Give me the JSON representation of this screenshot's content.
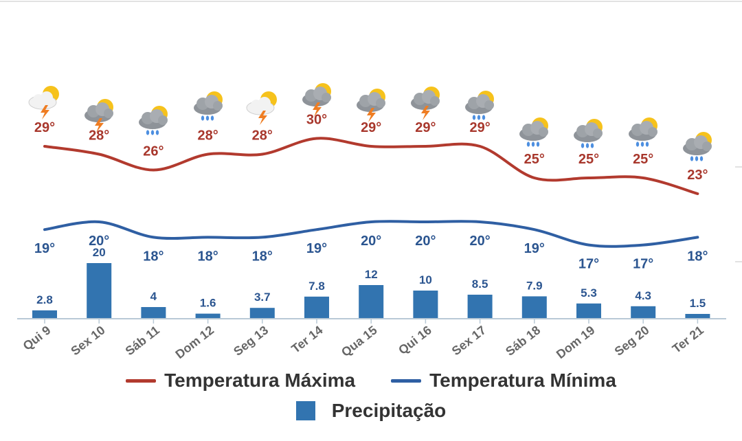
{
  "colors": {
    "max": "#b23a2e",
    "min": "#2f5fa3",
    "bar": "#3274b0",
    "max_label": "#a8372c",
    "min_label": "#2b5590",
    "bar_label": "#2b5590",
    "axis": "#b9c9d6",
    "tick_text": "#666666"
  },
  "chart_data": {
    "type": "line+bar",
    "categories": [
      "Qui 9",
      "Sex 10",
      "Sáb 11",
      "Dom 12",
      "Seg 13",
      "Ter 14",
      "Qua 15",
      "Qui 16",
      "Sex 17",
      "Sáb 18",
      "Dom 19",
      "Seg 20",
      "Ter 21"
    ],
    "series": [
      {
        "name": "Temperatura Máxima",
        "type": "line",
        "values": [
          29,
          28,
          26,
          28,
          28,
          30,
          29,
          29,
          29,
          25,
          25,
          25,
          23
        ],
        "labels": [
          "29°",
          "28°",
          "26°",
          "28°",
          "28°",
          "30°",
          "29°",
          "29°",
          "29°",
          "25°",
          "25°",
          "25°",
          "23°"
        ]
      },
      {
        "name": "Temperatura Mínima",
        "type": "line",
        "values": [
          19,
          20,
          18,
          18,
          18,
          19,
          20,
          20,
          20,
          19,
          17,
          17,
          18
        ],
        "labels": [
          "19°",
          "20°",
          "18°",
          "18°",
          "18°",
          "19°",
          "20°",
          "20°",
          "20°",
          "19°",
          "17°",
          "17°",
          "18°"
        ]
      },
      {
        "name": "Precipitação",
        "type": "bar",
        "values": [
          2.8,
          20,
          4,
          1.6,
          3.7,
          7.8,
          12,
          10,
          8.5,
          7.9,
          5.3,
          4.3,
          1.5
        ],
        "labels": [
          "2.8",
          "20",
          "4",
          "1.6",
          "3.7",
          "7.8",
          "12",
          "10",
          "8.5",
          "7.9",
          "5.3",
          "4.3",
          "1.5"
        ]
      }
    ],
    "icons": [
      "storm-sun-icon",
      "storm-cloud-icon",
      "rain-cloud-icon",
      "rain-cloud-icon",
      "storm-sun-icon",
      "storm-cloud-icon",
      "storm-cloud-icon",
      "storm-cloud-icon",
      "rain-cloud-icon",
      "rain-cloud-icon",
      "rain-cloud-icon",
      "rain-cloud-icon",
      "rain-cloud-icon"
    ],
    "legend_position": "bottom",
    "grid": false
  },
  "legend": {
    "max_label": "Temperatura Máxima",
    "min_label": "Temperatura Mínima",
    "bar_label": "Precipitação"
  }
}
